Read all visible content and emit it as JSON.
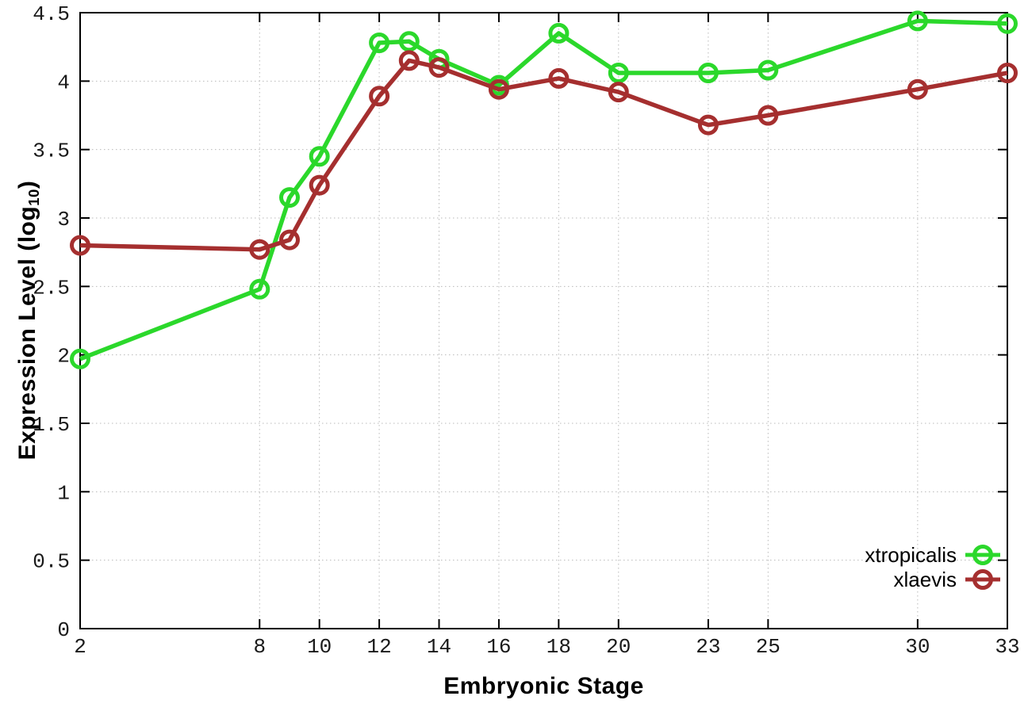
{
  "chart_data": {
    "type": "line",
    "title": "",
    "xlabel": "Embryonic Stage",
    "ylabel": "Expression Level (log10)",
    "ylabel_parts": {
      "prefix": "Expression Level (log",
      "sub": "10",
      "suffix": ")"
    },
    "x": [
      2,
      8,
      9,
      10,
      12,
      13,
      14,
      16,
      18,
      20,
      23,
      25,
      30,
      33
    ],
    "x_ticks": [
      2,
      8,
      10,
      12,
      14,
      16,
      18,
      20,
      23,
      25,
      30,
      33
    ],
    "x_tick_labels": [
      "2",
      "8",
      "10",
      "12",
      "14",
      "16",
      "18",
      "20",
      "23",
      "25",
      "30",
      "33"
    ],
    "y_ticks": [
      0,
      0.5,
      1,
      1.5,
      2,
      2.5,
      3,
      3.5,
      4,
      4.5
    ],
    "y_tick_labels": [
      "0",
      "0.5",
      "1",
      "1.5",
      "2",
      "2.5",
      "3",
      "3.5",
      "4",
      "4.5"
    ],
    "xlim": [
      2,
      33
    ],
    "ylim": [
      0,
      4.5
    ],
    "grid": true,
    "grid_style": "dotted",
    "legend_position": "bottom-right-inside",
    "series": [
      {
        "name": "xtropicalis",
        "color": "#2bd82b",
        "marker": "open-circle",
        "values": [
          1.97,
          2.48,
          3.15,
          3.45,
          4.28,
          4.29,
          4.16,
          3.97,
          4.35,
          4.06,
          4.06,
          4.08,
          4.44,
          4.42
        ]
      },
      {
        "name": "xlaevis",
        "color": "#a52f2f",
        "marker": "open-circle",
        "values": [
          2.8,
          2.77,
          2.84,
          3.24,
          3.89,
          4.15,
          4.1,
          3.94,
          4.02,
          3.92,
          3.68,
          3.75,
          3.94,
          4.06
        ]
      }
    ],
    "colors": {
      "background": "#ffffff",
      "border": "#000000",
      "grid": "#b9b9b9",
      "tick_text": "#1a1a1a"
    }
  }
}
